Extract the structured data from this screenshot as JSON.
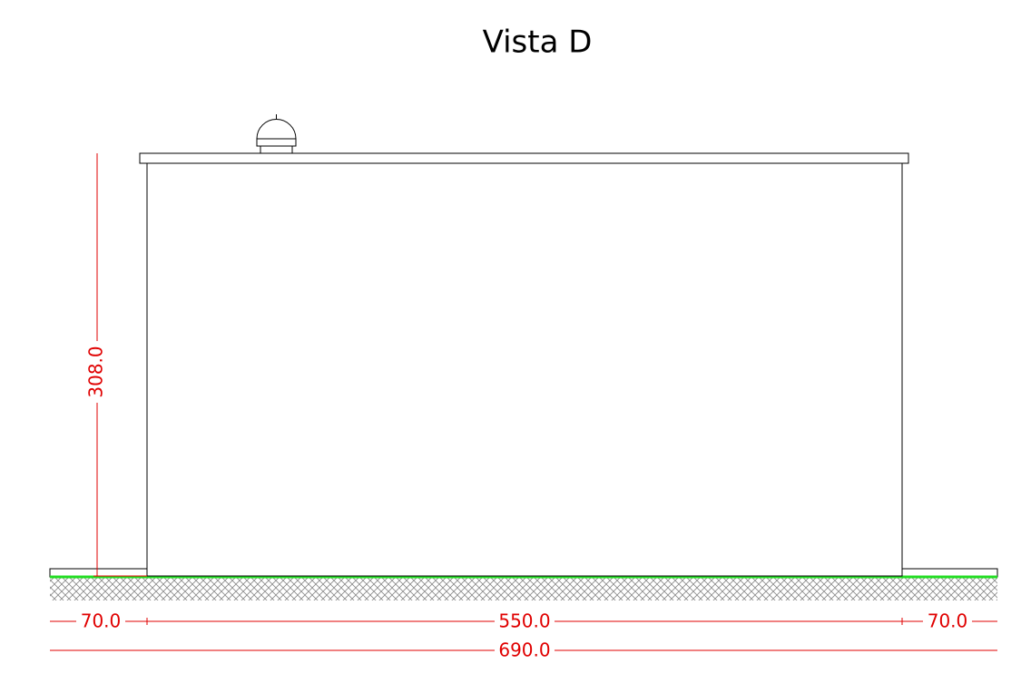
{
  "title": "Vista D",
  "dimensions": {
    "height": "308.0",
    "left": "70.0",
    "middle": "550.0",
    "right": "70.0",
    "total": "690.0"
  }
}
